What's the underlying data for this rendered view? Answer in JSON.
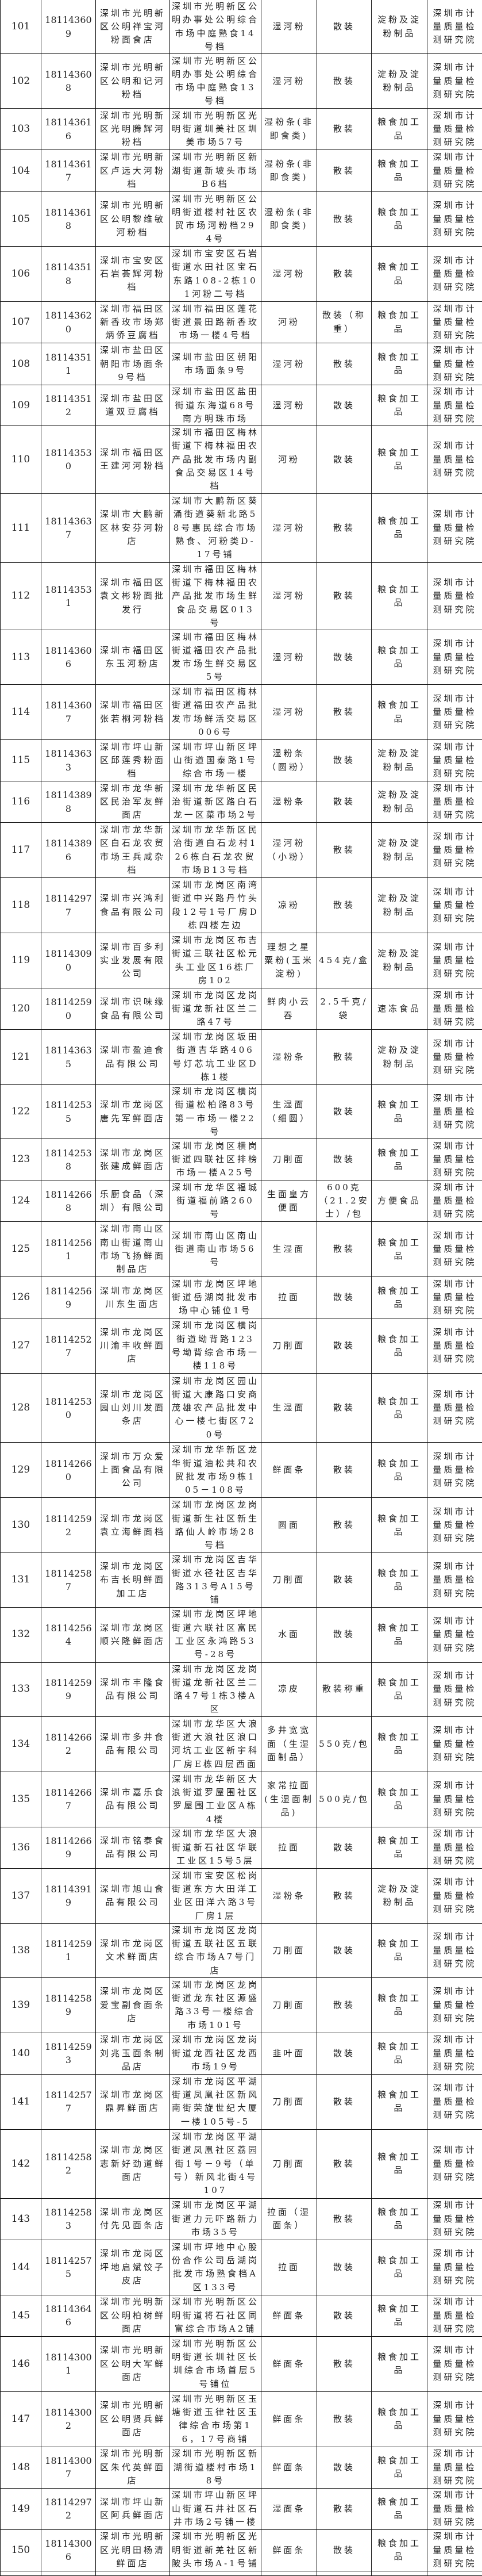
{
  "table": {
    "rows": [
      {
        "no": "101",
        "id": "181143609",
        "name": "深圳市光明新区公明祥宝河粉面食店",
        "address": "深圳市光明新区公明办事处公明综合市场中庭熟食14号档",
        "product": "湿河粉",
        "spec": "散装",
        "category": "淀粉及淀粉制品",
        "org": "深圳市计量质量检测研究院"
      },
      {
        "no": "102",
        "id": "181143608",
        "name": "深圳市光明新区公明和记河粉档",
        "address": "深圳市光明新区公明办事处公明综合市场中庭熟食13号档",
        "product": "湿河粉",
        "spec": "散装",
        "category": "淀粉及淀粉制品",
        "org": "深圳市计量质量检测研究院"
      },
      {
        "no": "103",
        "id": "181143616",
        "name": "深圳市光明新区光明腾辉河粉档",
        "address": "深圳市光明新区光明街道圳美社区圳美市场57号",
        "product": "湿粉条(非即食类)",
        "spec": "散装",
        "category": "粮食加工品",
        "org": "深圳市计量质量检测研究院"
      },
      {
        "no": "104",
        "id": "181143617",
        "name": "深圳市光明新区卢远大河粉档",
        "address": "深圳市光明新区新湖街道新坡头市场B6档",
        "product": "湿粉条(非即食类)",
        "spec": "散装",
        "category": "粮食加工品",
        "org": "深圳市计量质量检测研究院"
      },
      {
        "no": "105",
        "id": "181143618",
        "name": "深圳市光明新区公明黎维敏河粉档",
        "address": "深圳市光明新区公明街道楼村社区农贸市场河粉档294号",
        "product": "湿粉条(非即食类)",
        "spec": "散装",
        "category": "粮食加工品",
        "org": "深圳市计量质量检测研究院"
      },
      {
        "no": "106",
        "id": "181143518",
        "name": "深圳市宝安区石岩荟辉河粉档",
        "address": "深圳市宝安区石岩街道水田社区宝石东路108-2栋101河粉二号档",
        "product": "湿河粉",
        "spec": "散装",
        "category": "粮食加工品",
        "org": "深圳市计量质量检测研究院"
      },
      {
        "no": "107",
        "id": "181143620",
        "name": "深圳市福田区新香玫市场郑炳侨豆腐档",
        "address": "深圳市福田区莲花街道景田路新香玫市场一楼4号档",
        "product": "河粉",
        "spec": "散装（称重）",
        "category": "粮食加工品",
        "org": "深圳市计量质量检测研究院"
      },
      {
        "no": "108",
        "id": "181143511",
        "name": "深圳市盐田区朝阳市场面条9号档",
        "address": "深圳市盐田区朝阳市场面条9号",
        "product": "湿河粉",
        "spec": "散装",
        "category": "粮食加工品",
        "org": "深圳市计量质量检测研究院"
      },
      {
        "no": "109",
        "id": "181143512",
        "name": "深圳市盐田区道双豆腐档",
        "address": "深圳市盐田区盐田街道东海道68号南方明珠市场",
        "product": "湿河粉",
        "spec": "散装",
        "category": "粮食加工品",
        "org": "深圳市计量质量检测研究院"
      },
      {
        "no": "110",
        "id": "181143530",
        "name": "深圳市福田区王建河河粉档",
        "address": "深圳市福田区梅林街道下梅林福田农产品批发市场内副食品交易区14号档",
        "product": "河粉",
        "spec": "散装",
        "category": "粮食加工品",
        "org": "深圳市计量质量检测研究院"
      },
      {
        "no": "111",
        "id": "181143637",
        "name": "深圳市大鹏新区林安芬河粉店",
        "address": "深圳市大鹏新区葵涌街道葵新北路58号惠民综合市场熟食、河粉类D-17号铺",
        "product": "湿河粉",
        "spec": "散装",
        "category": "粮食加工品",
        "org": "深圳市计量质量检测研究院"
      },
      {
        "no": "112",
        "id": "181143531",
        "name": "深圳市福田区袁文彬粉面批发行",
        "address": "深圳市福田区梅林街道下梅林福田农产品批发市场生鲜食品交易区013号",
        "product": "湿河粉",
        "spec": "散装",
        "category": "粮食加工品",
        "org": "深圳市计量质量检测研究院"
      },
      {
        "no": "113",
        "id": "181143606",
        "name": "深圳市福田区东玉河粉店",
        "address": "深圳市福田区梅林街道福田农产品批发市场生鲜交易区5号",
        "product": "湿河粉",
        "spec": "散装",
        "category": "粮食加工品",
        "org": "深圳市计量质量检测研究院"
      },
      {
        "no": "114",
        "id": "181143607",
        "name": "深圳市福田区张若桐河粉档",
        "address": "深圳市福田区梅林街道福田农产品批发市场鲜活交易区006号",
        "product": "湿河粉",
        "spec": "散装",
        "category": "粮食加工品",
        "org": "深圳市计量质量检测研究院"
      },
      {
        "no": "115",
        "id": "181143633",
        "name": "深圳市坪山新区邱莲秀粉面档",
        "address": "深圳市坪山新区坪山街道国泰路1号综合市场一楼",
        "product": "湿粉条（圆粉）",
        "spec": "散装",
        "category": "淀粉及淀粉制品",
        "org": "深圳市计量质量检测研究院"
      },
      {
        "no": "116",
        "id": "181143898",
        "name": "深圳市龙华新区民治军友鲜面店",
        "address": "深圳市龙华新区民治街道新区路白石龙一区菜市场2号",
        "product": "湿粉条",
        "spec": "散装",
        "category": "淀粉及淀粉制品",
        "org": "深圳市计量质量检测研究院"
      },
      {
        "no": "117",
        "id": "181143896",
        "name": "深圳市龙华新区白石龙农贸市场王兵咸杂档",
        "address": "深圳市龙华新区民治街道白石龙村126栋白石龙农贸市场B13号档",
        "product": "湿河粉（小粉）",
        "spec": "散装",
        "category": "淀粉及淀粉制品",
        "org": "深圳市计量质量检测研究院"
      },
      {
        "no": "118",
        "id": "181142977",
        "name": "深圳市兴鸿利食品有限公司",
        "address": "深圳市龙岗区南湾街道中兴路丹竹头段12号1号厂房D栋四楼左边",
        "product": "凉粉",
        "spec": "散装",
        "category": "淀粉及淀粉制品",
        "org": "深圳市计量质量检测研究院"
      },
      {
        "no": "119",
        "id": "181143090",
        "name": "深圳市百多利实业发展有限公司",
        "address": "深圳市龙岗区布吉街道三联社区松元头工业区16栋厂房102",
        "product": "理想之星粟粉(玉米淀粉)",
        "spec": "454克/盒",
        "category": "淀粉及淀粉制品",
        "org": "深圳市计量质量检测研究院"
      },
      {
        "no": "120",
        "id": "181142590",
        "name": "深圳市识味缘食品有限公司",
        "address": "深圳市龙岗区龙岗街道龙新社区兰二路47号",
        "product": "鲜肉小云吞",
        "spec": "2.5千克/袋",
        "category": "速冻食品",
        "org": "深圳市计量质量检测研究院"
      },
      {
        "no": "121",
        "id": "181143635",
        "name": "深圳市盈迪食品有限公司",
        "address": "深圳市龙岗区坂田街道吉华路406号灯芯坑工业区D栋1楼",
        "product": "湿粉条",
        "spec": "散装",
        "category": "淀粉及淀粉制品",
        "org": "深圳市计量质量检测研究院"
      },
      {
        "no": "122",
        "id": "181142535",
        "name": "深圳市龙岗区唐先军鲜面店",
        "address": "深圳市龙岗区横岗街道松柏路83号第一市场一楼22号",
        "product": "生湿面（细圆）",
        "spec": "散装",
        "category": "粮食加工品",
        "org": "深圳市计量质量检测研究院"
      },
      {
        "no": "123",
        "id": "181142538",
        "name": "深圳市龙岗区张建成鲜面店",
        "address": "深圳市龙岗区横岗街道四联社区排榜市场一楼A25号",
        "product": "刀削面",
        "spec": "散装",
        "category": "粮食加工品",
        "org": "深圳市计量质量检测研究院"
      },
      {
        "no": "124",
        "id": "181142668",
        "name": "乐厨食品（深圳）有限公司",
        "address": "深圳市龙华区福城街道福前路260号",
        "product": "生面皇方便面",
        "spec": "600克（21.2安士）/包",
        "category": "方便食品",
        "org": "深圳市计量质量检测研究院"
      },
      {
        "no": "125",
        "id": "181142561",
        "name": "深圳市南山区南山街道南山市场飞扬鲜面制品店",
        "address": "深圳市南山区南山街道南山市场56号",
        "product": "生湿面",
        "spec": "散装",
        "category": "粮食加工品",
        "org": "深圳市计量质量检测研究院"
      },
      {
        "no": "126",
        "id": "181142569",
        "name": "深圳市龙岗区川东生面店",
        "address": "深圳市龙岗区坪地街道岳湖岗批发市场中心铺位1号",
        "product": "拉面",
        "spec": "散装",
        "category": "粮食加工品",
        "org": "深圳市计量质量检测研究院"
      },
      {
        "no": "127",
        "id": "181142527",
        "name": "深圳市龙岗区川渝丰收鲜面店",
        "address": "深圳市龙岗区横岗街道坳背路123号坳背综合市场一楼118号",
        "product": "刀削面",
        "spec": "散装",
        "category": "粮食加工品",
        "org": "深圳市计量质量检测研究院"
      },
      {
        "no": "128",
        "id": "181142530",
        "name": "深圳市龙岗区园山刘川发面条店",
        "address": "深圳市龙岗区园山街道大康路口安商茂雄农产品批发中心一楼七街区720号",
        "product": "生湿面",
        "spec": "散装",
        "category": "粮食加工品",
        "org": "深圳市计量质量检测研究院"
      },
      {
        "no": "129",
        "id": "181142660",
        "name": "深圳市万众爱上面食品有限公司",
        "address": "深圳市龙华新区龙华街道油松共和农贸批发市场9栋105－108号",
        "product": "鲜面条",
        "spec": "散装",
        "category": "粮食加工品",
        "org": "深圳市计量质量检测研究院"
      },
      {
        "no": "130",
        "id": "181142592",
        "name": "深圳市龙岗区袁立海鲜面档",
        "address": "深圳市龙岗区龙岗街道新生社区新生路仙人岭市场28号档",
        "product": "圆面",
        "spec": "散装",
        "category": "粮食加工品",
        "org": "深圳市计量质量检测研究院"
      },
      {
        "no": "131",
        "id": "181142587",
        "name": "深圳市龙岗区布吉长明鲜面加工店",
        "address": "深圳市龙岗区吉华街道水径社区吉华路313号A15号铺",
        "product": "刀削面",
        "spec": "散装",
        "category": "粮食加工品",
        "org": "深圳市计量质量检测研究院"
      },
      {
        "no": "132",
        "id": "181142564",
        "name": "深圳市龙岗区顺兴隆鲜面店",
        "address": "深圳市龙岗区坪地街道六联社区富民工业区永鸿路53号-28号",
        "product": "水面",
        "spec": "散装",
        "category": "粮食加工品",
        "org": "深圳市计量质量检测研究院"
      },
      {
        "no": "133",
        "id": "181142599",
        "name": "深圳市丰隆食品有限公司",
        "address": "深圳市龙岗区龙岗街道龙新社区兰二路47号1栋3楼A区",
        "product": "凉皮",
        "spec": "散装称重",
        "category": "粮食加工品",
        "org": "深圳市计量质量检测研究院"
      },
      {
        "no": "134",
        "id": "181142662",
        "name": "深圳市多井食品有限公司",
        "address": "深圳市龙华区大浪街道大浪社区浪口河坑工业区新宇科厂房E栋四层西面",
        "product": "多井宽宽面（生湿面制品）",
        "spec": "550克/包",
        "category": "粮食加工品",
        "org": "深圳市计量质量检测研究院"
      },
      {
        "no": "135",
        "id": "181142667",
        "name": "深圳市嘉乐食品有限公司",
        "address": "深圳市龙华新区大浪街道罗屋围社区罗屋围工业区A栋4楼",
        "product": "家常拉面(生湿面制品)",
        "spec": "500克/包",
        "category": "粮食加工品",
        "org": "深圳市计量质量检测研究院"
      },
      {
        "no": "136",
        "id": "181142669",
        "name": "深圳市铭泰食品有限公司",
        "address": "深圳市龙华区大浪街道新石社区华联工业区15号5层",
        "product": "拉面",
        "spec": "散装",
        "category": "粮食加工品",
        "org": "深圳市计量质量检测研究院"
      },
      {
        "no": "137",
        "id": "181143919",
        "name": "深圳市旭山食品有限公司",
        "address": "深圳市宝安区松岗街道东方大田洋工业区田洋六路3号厂房1层",
        "product": "湿粉条",
        "spec": "散装",
        "category": "淀粉及淀粉制品",
        "org": "深圳市计量质量检测研究院"
      },
      {
        "no": "138",
        "id": "181142591",
        "name": "深圳市龙岗区文术鲜面店",
        "address": "深圳市龙岗区龙岗街道五联社区五联综合市场A7号门店",
        "product": "刀削面",
        "spec": "散装",
        "category": "粮食加工品",
        "org": "深圳市计量质量检测研究院"
      },
      {
        "no": "139",
        "id": "181142589",
        "name": "深圳市龙岗区爱宝副食面条店",
        "address": "深圳市龙岗区龙岗街道龙东社区源盛路33号一楼综合市场101号",
        "product": "刀削面",
        "spec": "散装",
        "category": "粮食加工品",
        "org": "深圳市计量质量检测研究院"
      },
      {
        "no": "140",
        "id": "181142593",
        "name": "深圳市龙岗区刘兆玉面条制品店",
        "address": "深圳市龙岗区龙岗街道龙西社区龙西市场19号",
        "product": "韭叶面",
        "spec": "散装",
        "category": "粮食加工品",
        "org": "深圳市计量质量检测研究院"
      },
      {
        "no": "141",
        "id": "181142577",
        "name": "深圳市龙岗区鼎昇鲜面店",
        "address": "深圳市龙岗区平湖街道凤凰社区新风南街荣旋世纪大厦一楼105号-5",
        "product": "刀削面",
        "spec": "散装",
        "category": "粮食加工品",
        "org": "深圳市计量质量检测研究院"
      },
      {
        "no": "142",
        "id": "181142582",
        "name": "深圳市龙岗区志新好劲道鲜面店",
        "address": "深圳市龙岗区平湖街道凤凰社区荔园街1号－9号（单号）新风北街4号107",
        "product": "刀削面",
        "spec": "散装",
        "category": "粮食加工品",
        "org": "深圳市计量质量检测研究院"
      },
      {
        "no": "143",
        "id": "181142583",
        "name": "深圳市龙岗区付先见面条店",
        "address": "深圳市龙岗区平湖街道力元吓路新力市场35号",
        "product": "拉面（湿面条）",
        "spec": "散装",
        "category": "粮食加工品",
        "org": "深圳市计量质量检测研究院"
      },
      {
        "no": "144",
        "id": "181142575",
        "name": "深圳市龙岗区坪地启斌饺子皮店",
        "address": "深圳市坪地中心股份合作公司岳湖岗批发市场熟食档A区133号",
        "product": "拉面",
        "spec": "散装",
        "category": "粮食加工品",
        "org": "深圳市计量质量检测研究院"
      },
      {
        "no": "145",
        "id": "181143646",
        "name": "深圳市光明新区公明柏树鲜面店",
        "address": "深圳市光明新区公明街道将石社区同富综合市场A2铺",
        "product": "鲜面条",
        "spec": "散装",
        "category": "粮食加工品",
        "org": "深圳市计量质量检测研究院"
      },
      {
        "no": "146",
        "id": "181143001",
        "name": "深圳市光明新区公明大军鲜面店",
        "address": "深圳市光明新区公明街道长圳社区长圳综合市场首层5号铺位",
        "product": "鲜面条",
        "spec": "散装",
        "category": "粮食加工品",
        "org": "深圳市计量质量检测研究院"
      },
      {
        "no": "147",
        "id": "181143002",
        "name": "深圳市光明新区公明贤兵鲜面店",
        "address": "深圳市光明新区玉塘街道玉律社区玉律综合市场第16，17号商铺",
        "product": "鲜面条",
        "spec": "散装",
        "category": "粮食加工品",
        "org": "深圳市计量质量检测研究院"
      },
      {
        "no": "148",
        "id": "181143007",
        "name": "深圳市光明新区朱代英鲜面店",
        "address": "深圳市光明新区新湖街道楼村市场18号",
        "product": "鲜面条",
        "spec": "散装",
        "category": "粮食加工品",
        "org": "深圳市计量质量检测研究院"
      },
      {
        "no": "149",
        "id": "181142972",
        "name": "深圳市坪山新区阿兵鲜面店",
        "address": "深圳市坪山新区坪山街道石井社区石井市场2号铺一楼",
        "product": "湿面条",
        "spec": "散装",
        "category": "粮食加工品",
        "org": "深圳市计量质量检测研究院"
      },
      {
        "no": "150",
        "id": "181143006",
        "name": "深圳市光明新区光明田杨清鲜面店",
        "address": "深圳市光明新区光明街道新羌社区新陂头市场A-1号铺",
        "product": "鲜面条",
        "spec": "散装",
        "category": "粮食加工品",
        "org": "深圳市计量质量检测研究院"
      }
    ]
  }
}
